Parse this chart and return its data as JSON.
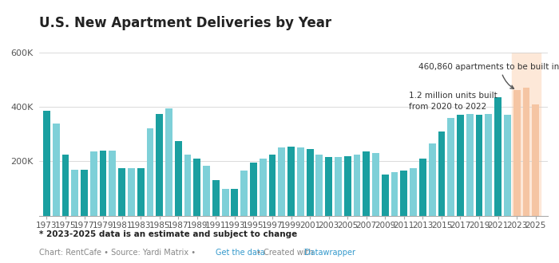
{
  "title": "U.S. New Apartment Deliveries by Year",
  "footnote": "* 2023-2025 data is an estimate and subject to change",
  "years": [
    1973,
    1974,
    1975,
    1976,
    1977,
    1978,
    1979,
    1980,
    1981,
    1982,
    1983,
    1984,
    1985,
    1986,
    1987,
    1988,
    1989,
    1990,
    1991,
    1992,
    1993,
    1994,
    1995,
    1996,
    1997,
    1998,
    1999,
    2000,
    2001,
    2002,
    2003,
    2004,
    2005,
    2006,
    2007,
    2008,
    2009,
    2010,
    2011,
    2012,
    2013,
    2014,
    2015,
    2016,
    2017,
    2018,
    2019,
    2020,
    2021,
    2022,
    2023,
    2024,
    2025
  ],
  "values": [
    385000,
    340000,
    225000,
    170000,
    170000,
    235000,
    240000,
    240000,
    175000,
    175000,
    175000,
    320000,
    375000,
    395000,
    275000,
    225000,
    210000,
    185000,
    130000,
    100000,
    100000,
    165000,
    195000,
    210000,
    225000,
    250000,
    255000,
    250000,
    245000,
    225000,
    215000,
    215000,
    220000,
    225000,
    235000,
    230000,
    150000,
    160000,
    165000,
    175000,
    210000,
    265000,
    310000,
    360000,
    370000,
    375000,
    370000,
    375000,
    435000,
    370000,
    460860,
    470000,
    408000
  ],
  "teal_dark": "#1a9fa0",
  "teal_light": "#7ed0d8",
  "peach": "#f5c5a3",
  "bg_highlight": "#fde8d8",
  "ylim": [
    0,
    600000
  ],
  "ytick_labels": [
    "200K",
    "400K",
    "600K"
  ],
  "xtick_years": [
    1973,
    1975,
    1977,
    1979,
    1981,
    1983,
    1985,
    1987,
    1989,
    1991,
    1993,
    1995,
    1997,
    1999,
    2001,
    2003,
    2005,
    2007,
    2009,
    2011,
    2013,
    2015,
    2017,
    2019,
    2021,
    2023,
    2025
  ]
}
